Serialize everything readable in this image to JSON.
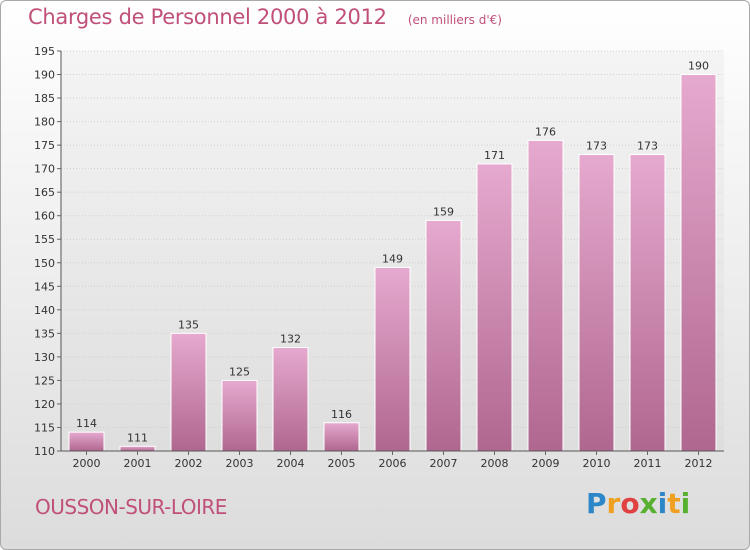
{
  "header": {
    "title": "Charges de Personnel 2000 à 2012",
    "unit": "(en milliers d'€)"
  },
  "footer": {
    "commune": "OUSSON-SUR-LOIRE",
    "brand_letters": [
      "P",
      "r",
      "o",
      "x",
      "i",
      "t",
      "i"
    ]
  },
  "chart_data": {
    "type": "bar",
    "title": "Charges de Personnel 2000 à 2012",
    "subtitle": "(en milliers d'€)",
    "xlabel": "",
    "ylabel": "",
    "categories": [
      "2000",
      "2001",
      "2002",
      "2003",
      "2004",
      "2005",
      "2006",
      "2007",
      "2008",
      "2009",
      "2010",
      "2011",
      "2012"
    ],
    "values": [
      114,
      111,
      135,
      125,
      132,
      116,
      149,
      159,
      171,
      176,
      173,
      173,
      190
    ],
    "ylim": [
      110,
      195
    ],
    "yticks": [
      110,
      115,
      120,
      125,
      130,
      135,
      140,
      145,
      150,
      155,
      160,
      165,
      170,
      175,
      180,
      185,
      190,
      195
    ],
    "grid": true,
    "legend": "none",
    "colors": {
      "bar_top": "#e6a9cf",
      "bar_bottom": "#b0678f",
      "grid": "#cfcfcf",
      "text": "#333333",
      "title": "#c0507a"
    }
  }
}
